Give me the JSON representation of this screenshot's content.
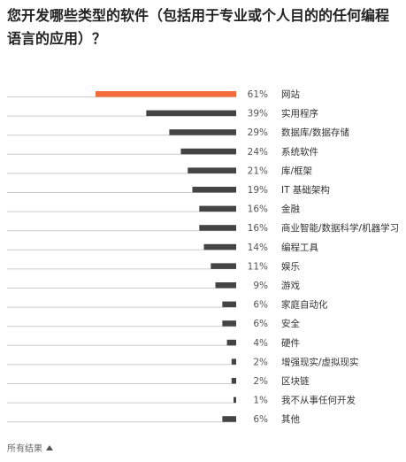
{
  "title": "您开发哪些类型的软件（包括用于专业或个人目的的任何编程语言的应用）？",
  "footer": {
    "label": "所有结果",
    "icon": "triangle-up-icon"
  },
  "colors": {
    "highlight": "#f36d3c",
    "bar": "#444444",
    "baseline": "#cccccc",
    "highlight_text": "#f36d3c"
  },
  "chart_data": {
    "type": "bar",
    "orientation": "horizontal",
    "unit": "%",
    "highlight_index": 0,
    "categories": [
      "网站",
      "实用程序",
      "数据库/数据存储",
      "系统软件",
      "库/框架",
      "IT 基础架构",
      "金融",
      "商业智能/数据科学/机器学习",
      "编程工具",
      "娱乐",
      "游戏",
      "家庭自动化",
      "安全",
      "硬件",
      "增强现实/虚拟现实",
      "区块链",
      "我不从事任何开发",
      "其他"
    ],
    "values": [
      61,
      39,
      29,
      24,
      21,
      19,
      16,
      16,
      14,
      11,
      9,
      6,
      6,
      4,
      2,
      2,
      1,
      6
    ],
    "value_labels": [
      "61%",
      "39%",
      "29%",
      "24%",
      "21%",
      "19%",
      "16%",
      "16%",
      "14%",
      "11%",
      "9%",
      "6%",
      "6%",
      "4%",
      "2%",
      "2%",
      "1%",
      "6%"
    ]
  }
}
